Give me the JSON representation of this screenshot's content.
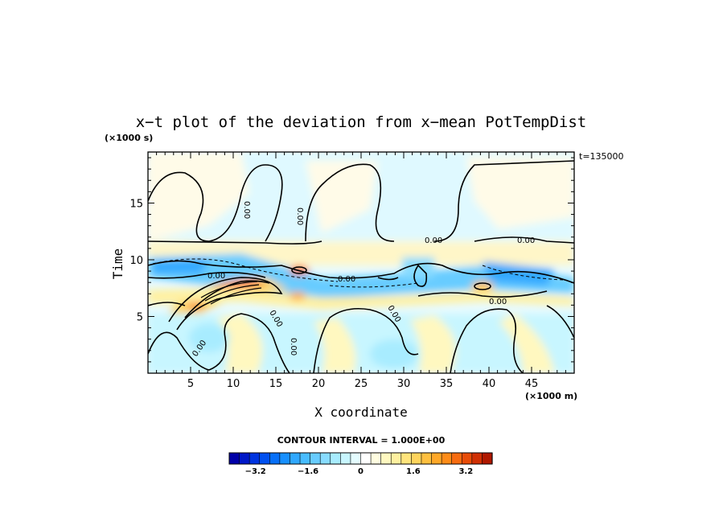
{
  "chart_data": {
    "type": "heatmap",
    "title": "x−t plot of the deviation from x−mean PotTempDist",
    "xlabel": "X coordinate",
    "ylabel": "Time",
    "x_unit": "(×1000 m)",
    "y_unit": "(×1000 s)",
    "time_stamp": "t=135000",
    "xlim": [
      0,
      50
    ],
    "ylim": [
      0,
      19.5
    ],
    "x_ticks": [
      "5",
      "10",
      "15",
      "20",
      "25",
      "30",
      "35",
      "40",
      "45"
    ],
    "y_ticks": [
      "5",
      "10",
      "15"
    ],
    "contour_interval_text": "CONTOUR INTERVAL = 1.000E+00",
    "contour_labels": [
      "0.00",
      "0.00",
      "0.00",
      "0.00",
      "0.00",
      "0.00",
      "0.00",
      "0.00",
      "0.00",
      "0.00",
      "0.00"
    ],
    "colorbar": {
      "range": [
        -4.0,
        4.0
      ],
      "tick_labels": [
        "−3.2",
        "−1.6",
        "0",
        "1.6",
        "3.2"
      ],
      "tick_values": [
        -3.2,
        -1.6,
        0,
        1.6,
        3.2
      ],
      "colors": [
        "#0000a8",
        "#0018c8",
        "#0034e0",
        "#0050f0",
        "#0870f8",
        "#1890ff",
        "#30a8ff",
        "#48bcff",
        "#68ccff",
        "#88dcff",
        "#a8ecff",
        "#c8f6ff",
        "#e4fcff",
        "#ffffff",
        "#fffde0",
        "#fff8c0",
        "#fff0a0",
        "#ffe47c",
        "#ffd45c",
        "#ffc040",
        "#ffa828",
        "#ff8c18",
        "#f86c10",
        "#e84c08",
        "#d03004",
        "#b01800"
      ]
    }
  }
}
